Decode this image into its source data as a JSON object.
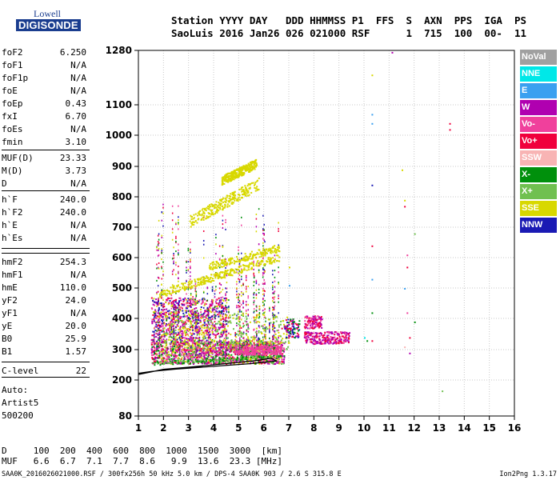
{
  "logo": {
    "line1": "Lowell",
    "line2": "DIGISONDE"
  },
  "header": {
    "line1": "Station YYYY DAY   DDD HHMMSS P1  FFS  S  AXN  PPS  IGA  PS",
    "line2": "SaoLuis 2016 Jan26 026 021000 RSF      1  715  100  00-  11"
  },
  "params": [
    {
      "label": "foF2",
      "value": "6.250"
    },
    {
      "label": "foF1",
      "value": "N/A"
    },
    {
      "label": "foF1p",
      "value": "N/A"
    },
    {
      "label": "foE",
      "value": "N/A"
    },
    {
      "label": "foEp",
      "value": "0.43"
    },
    {
      "label": "fxI",
      "value": "6.70"
    },
    {
      "label": "foEs",
      "value": "N/A"
    },
    {
      "label": "fmin",
      "value": "3.10"
    },
    {
      "label": "MUF(D)",
      "value": "23.33"
    },
    {
      "label": "M(D)",
      "value": "3.73"
    },
    {
      "label": "D",
      "value": "N/A"
    },
    {
      "label": "h`F",
      "value": "240.0"
    },
    {
      "label": "h`F2",
      "value": "240.0"
    },
    {
      "label": "h`E",
      "value": "N/A"
    },
    {
      "label": "h`Es",
      "value": "N/A"
    },
    {
      "label": "hmF2",
      "value": "254.3"
    },
    {
      "label": "hmF1",
      "value": "N/A"
    },
    {
      "label": "hmE",
      "value": "110.0"
    },
    {
      "label": "yF2",
      "value": "24.0"
    },
    {
      "label": "yF1",
      "value": "N/A"
    },
    {
      "label": "yE",
      "value": "20.0"
    },
    {
      "label": "B0",
      "value": "25.9"
    },
    {
      "label": "B1",
      "value": "1.57"
    },
    {
      "label": "C-level",
      "value": "22"
    }
  ],
  "auto": [
    "Auto:",
    "Artist5",
    "500200"
  ],
  "legend": [
    {
      "label": "NoVal",
      "color": "#a0a0a0"
    },
    {
      "label": "NNE",
      "color": "#00e8e8"
    },
    {
      "label": "E",
      "color": "#3aa0f0"
    },
    {
      "label": "W",
      "color": "#b000b0"
    },
    {
      "label": "Vo-",
      "color": "#f0409c"
    },
    {
      "label": "Vo+",
      "color": "#f0003c"
    },
    {
      "label": "SSW",
      "color": "#f8b4b4"
    },
    {
      "label": "X-",
      "color": "#00900c"
    },
    {
      "label": "X+",
      "color": "#70c050"
    },
    {
      "label": "SSE",
      "color": "#d8d800"
    },
    {
      "label": "NNW",
      "color": "#1a1ab4"
    }
  ],
  "dtable": {
    "line1": "D     100  200  400  600  800  1000  1500  3000  [km]",
    "line2": "MUF   6.6  6.7  7.1  7.7  8.6   9.9  13.6  23.3 [MHz]"
  },
  "footer": {
    "left": "SAA0K_2016026021000.RSF / 300fx256h 50 kHz 5.0 km / DPS-4 SAA0K 903 / 2.6 S 315.8 E",
    "right": "Ion2Png 1.3.17"
  },
  "chart_data": {
    "type": "scatter",
    "xlim": [
      1,
      16
    ],
    "x_ticks": [
      "1",
      "2",
      "3",
      "4",
      "5",
      "6",
      "7",
      "8",
      "9",
      "10",
      "11",
      "12",
      "13",
      "14",
      "15",
      "16"
    ],
    "y_ticks": [
      "80",
      "200",
      "300",
      "400",
      "500",
      "600",
      "700",
      "800",
      "900",
      "1000",
      "1100",
      "1280"
    ],
    "grid": true,
    "trace": {
      "color": "#000000",
      "points": [
        [
          1.0,
          218
        ],
        [
          2.0,
          235
        ],
        [
          3.0,
          242
        ],
        [
          4.0,
          250
        ],
        [
          5.0,
          258
        ],
        [
          5.8,
          265
        ],
        [
          6.3,
          272
        ],
        [
          6.5,
          262
        ],
        [
          5.5,
          254
        ],
        [
          4.5,
          248
        ],
        [
          3.5,
          242
        ],
        [
          2.5,
          236
        ],
        [
          1.5,
          228
        ],
        [
          1.0,
          222
        ]
      ]
    }
  }
}
